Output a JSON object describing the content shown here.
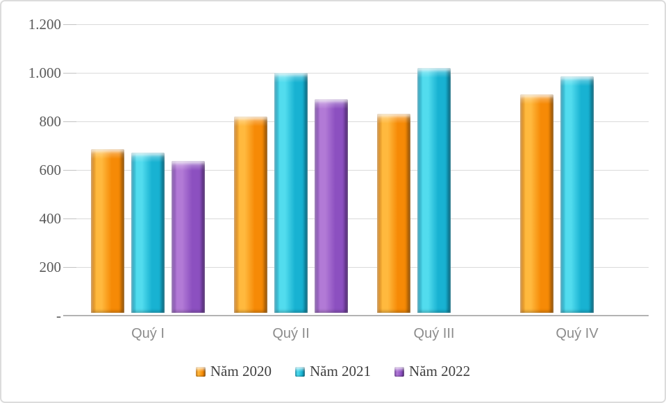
{
  "chart_data": {
    "type": "bar",
    "title": "",
    "categories": [
      "Quý I",
      "Quý II",
      "Quý III",
      "Quý IV"
    ],
    "series": [
      {
        "name": "Năm 2020",
        "values": [
          675,
          810,
          820,
          900
        ],
        "color": {
          "fill": "#F68A06",
          "light": "#FFB93E",
          "dark": "#C06A04"
        }
      },
      {
        "name": "Năm 2021",
        "values": [
          660,
          990,
          1010,
          975
        ],
        "color": {
          "fill": "#18B2D2",
          "light": "#52DCEE",
          "dark": "#0A87A6"
        }
      },
      {
        "name": "Năm 2022",
        "values": [
          625,
          880,
          null,
          null
        ],
        "color": {
          "fill": "#8C50C0",
          "light": "#B27AD6",
          "dark": "#663493"
        }
      }
    ],
    "ylim": [
      0,
      1200
    ],
    "y_ticks": [
      {
        "label": "1.200",
        "value": 1200
      },
      {
        "label": "1.000",
        "value": 1000
      },
      {
        "label": "800",
        "value": 800
      },
      {
        "label": "600",
        "value": 600
      },
      {
        "label": "400",
        "value": 400
      },
      {
        "label": "200",
        "value": 200
      },
      {
        "label": "-",
        "value": 0
      }
    ],
    "grid": true,
    "legend_position": "bottom",
    "legend": [
      "Năm 2020",
      "Năm 2021",
      "Năm 2022"
    ]
  }
}
